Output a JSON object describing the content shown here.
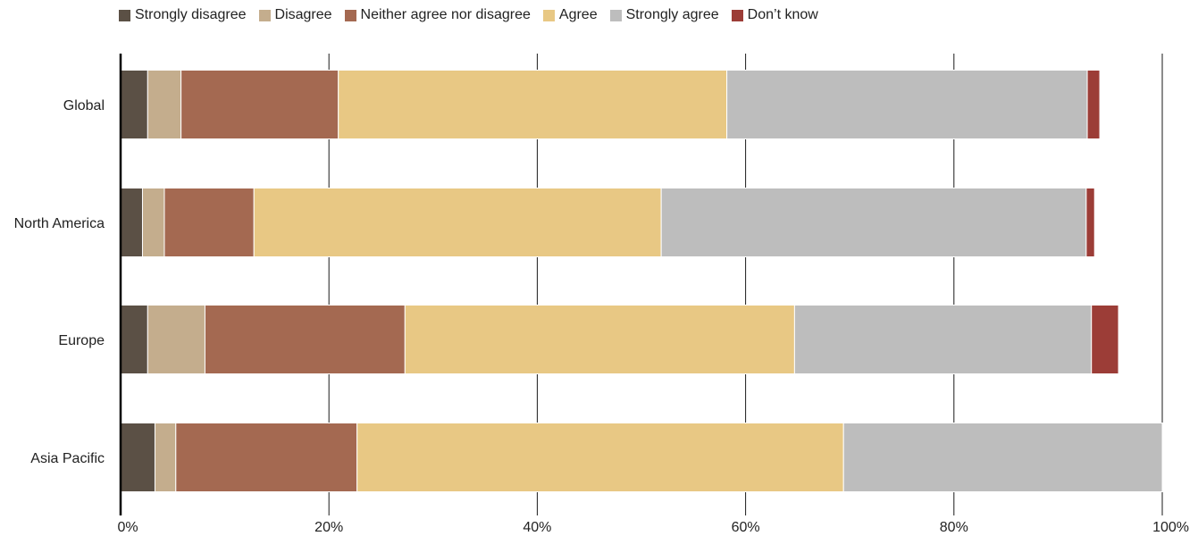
{
  "chart_data": {
    "type": "bar",
    "orientation": "horizontal",
    "stacked": true,
    "categories": [
      "Global",
      "North America",
      "Europe",
      "Asia Pacific"
    ],
    "series": [
      {
        "name": "Strongly disagree",
        "color": "#5b5045",
        "values": [
          2.6,
          2.1,
          2.6,
          3.3
        ]
      },
      {
        "name": "Disagree",
        "color": "#c4ad8d",
        "values": [
          3.2,
          2.1,
          5.5,
          2.0
        ]
      },
      {
        "name": "Neither agree nor disagree",
        "color": "#a46951",
        "values": [
          15.1,
          8.6,
          19.2,
          17.4
        ]
      },
      {
        "name": "Agree",
        "color": "#e8c884",
        "values": [
          37.3,
          39.1,
          37.4,
          46.7
        ]
      },
      {
        "name": "Strongly agree",
        "color": "#bdbdbd",
        "values": [
          34.6,
          40.8,
          28.5,
          30.6
        ]
      },
      {
        "name": "Don’t know",
        "color": "#9c3d37",
        "values": [
          1.2,
          0.8,
          2.6,
          0.0
        ]
      }
    ],
    "xlim": [
      0,
      100
    ],
    "x_ticks": [
      "0%",
      "20%",
      "40%",
      "60%",
      "80%",
      "100%"
    ],
    "grid": true,
    "legend_position": "top-left"
  }
}
